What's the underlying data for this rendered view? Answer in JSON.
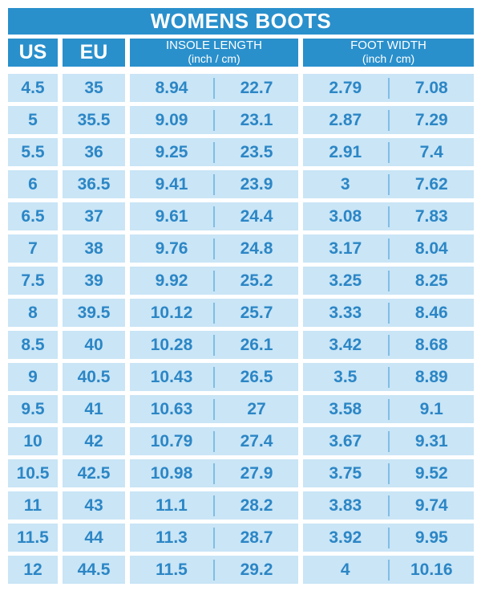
{
  "title": "WOMENS BOOTS",
  "colors": {
    "header_blue": "#2a90cc",
    "cell_blue": "#c9e5f6",
    "text_blue": "#2c86c5",
    "divider_blue": "#7fbee5",
    "background": "#ffffff",
    "header_text": "#ffffff"
  },
  "headers": {
    "us": "US",
    "eu": "EU",
    "insole": {
      "label": "INSOLE LENGTH",
      "unit": "(inch / cm)"
    },
    "foot": {
      "label": "FOOT WIDTH",
      "unit": "(inch / cm)"
    }
  },
  "chart_data": {
    "type": "table",
    "title": "WOMENS BOOTS",
    "columns": [
      "US",
      "EU",
      "Insole length (inch)",
      "Insole length (cm)",
      "Foot width (inch)",
      "Foot width (cm)"
    ],
    "rows": [
      [
        "4.5",
        "35",
        "8.94",
        "22.7",
        "2.79",
        "7.08"
      ],
      [
        "5",
        "35.5",
        "9.09",
        "23.1",
        "2.87",
        "7.29"
      ],
      [
        "5.5",
        "36",
        "9.25",
        "23.5",
        "2.91",
        "7.4"
      ],
      [
        "6",
        "36.5",
        "9.41",
        "23.9",
        "3",
        "7.62"
      ],
      [
        "6.5",
        "37",
        "9.61",
        "24.4",
        "3.08",
        "7.83"
      ],
      [
        "7",
        "38",
        "9.76",
        "24.8",
        "3.17",
        "8.04"
      ],
      [
        "7.5",
        "39",
        "9.92",
        "25.2",
        "3.25",
        "8.25"
      ],
      [
        "8",
        "39.5",
        "10.12",
        "25.7",
        "3.33",
        "8.46"
      ],
      [
        "8.5",
        "40",
        "10.28",
        "26.1",
        "3.42",
        "8.68"
      ],
      [
        "9",
        "40.5",
        "10.43",
        "26.5",
        "3.5",
        "8.89"
      ],
      [
        "9.5",
        "41",
        "10.63",
        "27",
        "3.58",
        "9.1"
      ],
      [
        "10",
        "42",
        "10.79",
        "27.4",
        "3.67",
        "9.31"
      ],
      [
        "10.5",
        "42.5",
        "10.98",
        "27.9",
        "3.75",
        "9.52"
      ],
      [
        "11",
        "43",
        "11.1",
        "28.2",
        "3.83",
        "9.74"
      ],
      [
        "11.5",
        "44",
        "11.3",
        "28.7",
        "3.92",
        "9.95"
      ],
      [
        "12",
        "44.5",
        "11.5",
        "29.2",
        "4",
        "10.16"
      ]
    ]
  }
}
